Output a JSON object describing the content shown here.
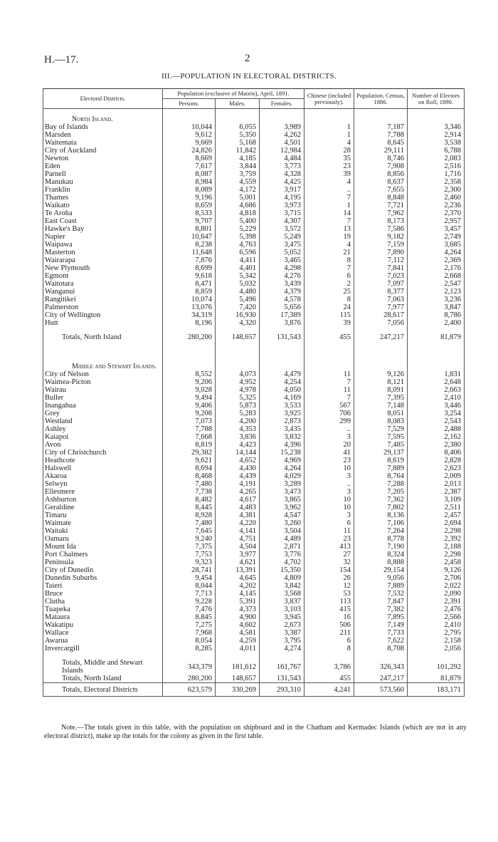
{
  "header": {
    "code": "H.—17.",
    "page": "2"
  },
  "title": "III.—POPULATION IN ELECTORAL DISTRICTS.",
  "columns": {
    "district": "Electoral Districts.",
    "population": "Population (exclusive of Maoris), April, 1891.",
    "persons": "Persons.",
    "males": "Males.",
    "females": "Females.",
    "chinese": "Chinese (included previously).",
    "census": "Population, Census, 1886.",
    "electors": "Number of Electors on Roll, 1890."
  },
  "sections": [
    {
      "heading": "North Island.",
      "rows": [
        [
          "Bay of Islands",
          "10,044",
          "6,055",
          "3,989",
          "1",
          "7,187",
          "3,346"
        ],
        [
          "Marsden",
          "9,612",
          "5,350",
          "4,262",
          "1",
          "7,788",
          "2,914"
        ],
        [
          "Waitemata",
          "9,669",
          "5,168",
          "4,501",
          "4",
          "8,645",
          "3,538"
        ],
        [
          "City of Auckland",
          "24,826",
          "11,842",
          "12,984",
          "28",
          "29,111",
          "6,788"
        ],
        [
          "Newton",
          "8,669",
          "4,185",
          "4,484",
          "35",
          "8,746",
          "2,083"
        ],
        [
          "Eden",
          "7,617",
          "3,844",
          "3,773",
          "23",
          "7,908",
          "2,516"
        ],
        [
          "Parnell",
          "8,087",
          "3,759",
          "4,328",
          "39",
          "8,856",
          "1,716"
        ],
        [
          "Manukau",
          "8,984",
          "4,559",
          "4,425",
          "4",
          "8,637",
          "2,358"
        ],
        [
          "Franklin",
          "8,089",
          "4,172",
          "3,917",
          "..",
          "7,655",
          "2,300"
        ],
        [
          "Thames",
          "9,196",
          "5,001",
          "4,195",
          "7",
          "8,848",
          "2,460"
        ],
        [
          "Waikato",
          "8,659",
          "4,686",
          "3,973",
          "1",
          "7,721",
          "2,236"
        ],
        [
          "Te Aroha",
          "8,533",
          "4,818",
          "3,715",
          "14",
          "7,962",
          "2,370"
        ],
        [
          "East Coast",
          "9,707",
          "5,400",
          "4,307",
          "7",
          "8,173",
          "2,957"
        ],
        [
          "Hawke's Bay",
          "8,801",
          "5,229",
          "3,572",
          "13",
          "7,586",
          "3,457"
        ],
        [
          "Napier",
          "10,647",
          "5,398",
          "5,249",
          "19",
          "9,182",
          "2,749"
        ],
        [
          "Waipawa",
          "8,238",
          "4,763",
          "3,475",
          "4",
          "7,159",
          "3,685"
        ],
        [
          "Masterton",
          "11,648",
          "6,596",
          "5,052",
          "21",
          "7,890",
          "4,264"
        ],
        [
          "Wairarapa",
          "7,876",
          "4,411",
          "3,465",
          "8",
          "7,112",
          "2,369"
        ],
        [
          "New Plymouth",
          "8,699",
          "4,401",
          "4,298",
          "7",
          "7,841",
          "2,176"
        ],
        [
          "Egmont",
          "9,618",
          "5,342",
          "4,276",
          "6",
          "7,023",
          "2,668"
        ],
        [
          "Waitotara",
          "8,471",
          "5,032",
          "3,439",
          "2",
          "7,097",
          "2,547"
        ],
        [
          "Wanganui",
          "8,859",
          "4,480",
          "4,379",
          "25",
          "8,377",
          "2,123"
        ],
        [
          "Rangitikei",
          "10,074",
          "5,496",
          "4,578",
          "8",
          "7,063",
          "3,236"
        ],
        [
          "Palmerston",
          "13,076",
          "7,420",
          "5,656",
          "24",
          "7,977",
          "3,847"
        ],
        [
          "City of Wellington",
          "34,319",
          "16,930",
          "17,389",
          "115",
          "28,617",
          "8,786"
        ],
        [
          "Hutt",
          "8,196",
          "4,320",
          "3,876",
          "39",
          "7,056",
          "2,400"
        ]
      ],
      "total": [
        "Totals, North Island",
        "280,200",
        "148,657",
        "131,543",
        "455",
        "247,217",
        "81,879"
      ]
    },
    {
      "heading": "Middle and Stewart Islands.",
      "rows": [
        [
          "City of Nelson",
          "8,552",
          "4,073",
          "4,479",
          "11",
          "9,126",
          "1,831"
        ],
        [
          "Waimea-Picton",
          "9,206",
          "4,952",
          "4,254",
          "7",
          "8,121",
          "2,648"
        ],
        [
          "Wairau",
          "9,028",
          "4,978",
          "4,050",
          "11",
          "8,091",
          "2,663"
        ],
        [
          "Buller",
          "9,494",
          "5,325",
          "4,169",
          "7",
          "7,395",
          "2,410"
        ],
        [
          "Inangahua",
          "9,406",
          "5,873",
          "3,533",
          "567",
          "7,148",
          "3,446"
        ],
        [
          "Grey",
          "9,208",
          "5,283",
          "3,925",
          "706",
          "8,051",
          "3,254"
        ],
        [
          "Westland",
          "7,073",
          "4,200",
          "2,873",
          "299",
          "8,083",
          "2,543"
        ],
        [
          "Ashley",
          "7,788",
          "4,353",
          "3,435",
          "..",
          "7,529",
          "2,488"
        ],
        [
          "Kaiapoi",
          "7,668",
          "3,836",
          "3,832",
          "3",
          "7,595",
          "2,162"
        ],
        [
          "Avon",
          "8,819",
          "4,423",
          "4,396",
          "20",
          "7,485",
          "2,380"
        ],
        [
          "City of Christchurch",
          "29,382",
          "14,144",
          "15,238",
          "41",
          "29,137",
          "8,406"
        ],
        [
          "Heathcote",
          "9,621",
          "4,652",
          "4,969",
          "23",
          "8,619",
          "2,828"
        ],
        [
          "Halswell",
          "8,694",
          "4,430",
          "4,264",
          "10",
          "7,889",
          "2,623"
        ],
        [
          "Akaroa",
          "8,468",
          "4,439",
          "4,029",
          "3",
          "8,764",
          "2,009"
        ],
        [
          "Selwyn",
          "7,480",
          "4,191",
          "3,289",
          "..",
          "7,288",
          "2,013"
        ],
        [
          "Ellesmere",
          "7,738",
          "4,265",
          "3,473",
          "3",
          "7,205",
          "2,387"
        ],
        [
          "Ashburton",
          "8,482",
          "4,617",
          "3,865",
          "10",
          "7,362",
          "3,109"
        ],
        [
          "Geraldine",
          "8,445",
          "4,483",
          "3,962",
          "10",
          "7,802",
          "2,511"
        ],
        [
          "Timaru",
          "8,928",
          "4,381",
          "4,547",
          "3",
          "8,136",
          "2,457"
        ],
        [
          "Waimate",
          "7,480",
          "4,220",
          "3,260",
          "6",
          "7,106",
          "2,694"
        ],
        [
          "Waitaki",
          "7,645",
          "4,141",
          "3,504",
          "11",
          "7,264",
          "2,298"
        ],
        [
          "Oamaru",
          "9,240",
          "4,751",
          "4,489",
          "23",
          "8,778",
          "2,392"
        ],
        [
          "Mount Ida",
          "7,375",
          "4,504",
          "2,871",
          "413",
          "7,190",
          "2,188"
        ],
        [
          "Port Chalmers",
          "7,753",
          "3,977",
          "3,776",
          "27",
          "8,324",
          "2,298"
        ],
        [
          "Peninsula",
          "9,323",
          "4,621",
          "4,702",
          "32",
          "8,888",
          "2,458"
        ],
        [
          "City of Dunedin",
          "28,741",
          "13,391",
          "15,350",
          "154",
          "29,154",
          "9,126"
        ],
        [
          "Dunedin Suburbs",
          "9,454",
          "4,645",
          "4,809",
          "26",
          "9,056",
          "2,706"
        ],
        [
          "Taieri",
          "8,044",
          "4,202",
          "3,842",
          "12",
          "7,889",
          "2,022"
        ],
        [
          "Bruce",
          "7,713",
          "4,145",
          "3,568",
          "53",
          "7,532",
          "2,090"
        ],
        [
          "Clutha",
          "9,228",
          "5,391",
          "3,837",
          "113",
          "7,847",
          "2,391"
        ],
        [
          "Tuapeka",
          "7,476",
          "4,373",
          "3,103",
          "415",
          "7,382",
          "2,476"
        ],
        [
          "Mataura",
          "8,845",
          "4,900",
          "3,945",
          "16",
          "7,895",
          "2,566"
        ],
        [
          "Wakatipu",
          "7,275",
          "4,602",
          "2,673",
          "506",
          "7,149",
          "2,410"
        ],
        [
          "Wallace",
          "7,968",
          "4,581",
          "3,387",
          "211",
          "7,733",
          "2,795"
        ],
        [
          "Awarua",
          "8,054",
          "4,259",
          "3,795",
          "6",
          "7,622",
          "2,158"
        ],
        [
          "Invercargill",
          "8,285",
          "4,011",
          "4,274",
          "8",
          "8,708",
          "2,056"
        ]
      ],
      "total": [
        "Totals, Middle and Stewart Islands",
        "343,379",
        "181,612",
        "161,767",
        "3,786",
        "326,343",
        "101,292"
      ]
    }
  ],
  "summary": [
    [
      "Totals, North Island",
      "280,200",
      "148,657",
      "131,543",
      "455",
      "247,217",
      "81,879"
    ],
    [
      "Totals, Electoral Districts",
      "623,579",
      "330,269",
      "293,310",
      "4,241",
      "573,560",
      "183,171"
    ]
  ],
  "note": "Note.—The totals given in this table, with the population on shipboard and in the Chatham and Kermadec Islands (which are not in any electoral district), make up the totals for the colony as given in the first table."
}
